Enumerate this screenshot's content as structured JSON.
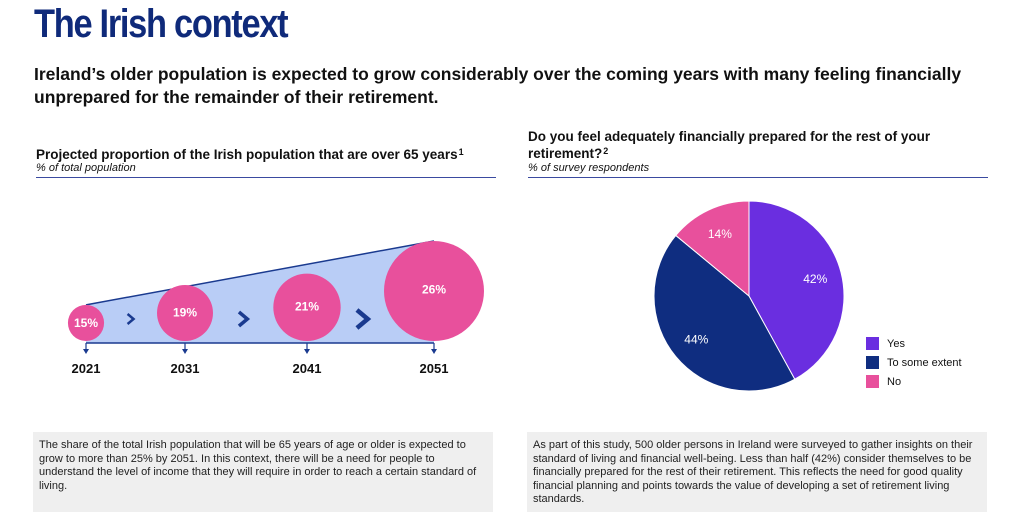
{
  "header": {
    "title": "The Irish context",
    "subtitle": "Ireland’s older population is expected to grow considerably over the coming years with many feeling financially unprepared for the remainder of their retirement."
  },
  "left_panel": {
    "title": "Projected proportion of the Irish population that are over 65 years",
    "footnote_marker": "1",
    "unit": "% of total population",
    "note": "The share of the total Irish population that will be 65 years of age or older is expected to grow to more than 25% by 2051. In this context, there will be a need for people to understand the level of income that they will require in order to reach a certain standard of living."
  },
  "right_panel": {
    "title": "Do you feel adequately financially prepared for the rest of your retirement?",
    "footnote_marker": "2",
    "unit": "% of survey respondents",
    "note": "As part of this study, 500 older persons in Ireland were surveyed to gather insights on their standard of living and financial well-being. Less than half (42%) consider themselves to be financially prepared for the rest of their retirement. This reflects the need for good quality financial planning and points towards the value of developing a set of retirement living standards."
  },
  "colors": {
    "title_navy": "#0f2a7a",
    "bubble_pink": "#e8509c",
    "band_blue": "#b9cdf6",
    "arrow_navy": "#1a3a8f",
    "yes_purple": "#6a2ee0",
    "some_navy": "#0f2d80",
    "no_pink": "#e8509c"
  },
  "chart_data": [
    {
      "type": "bubble",
      "title": "Projected proportion of the Irish population that are over 65 years",
      "ylabel": "% of total population",
      "categories": [
        "2021",
        "2031",
        "2041",
        "2051"
      ],
      "values": [
        15,
        19,
        21,
        26
      ],
      "labels": [
        "15%",
        "19%",
        "21%",
        "26%"
      ]
    },
    {
      "type": "pie",
      "title": "Do you feel adequately financially prepared for the rest of your retirement?",
      "ylabel": "% of survey respondents",
      "categories": [
        "Yes",
        "To some extent",
        "No"
      ],
      "values": [
        42,
        44,
        14
      ],
      "labels": [
        "42%",
        "44%",
        "14%"
      ],
      "colors": [
        "#6a2ee0",
        "#0f2d80",
        "#e8509c"
      ],
      "legend": "right"
    }
  ]
}
